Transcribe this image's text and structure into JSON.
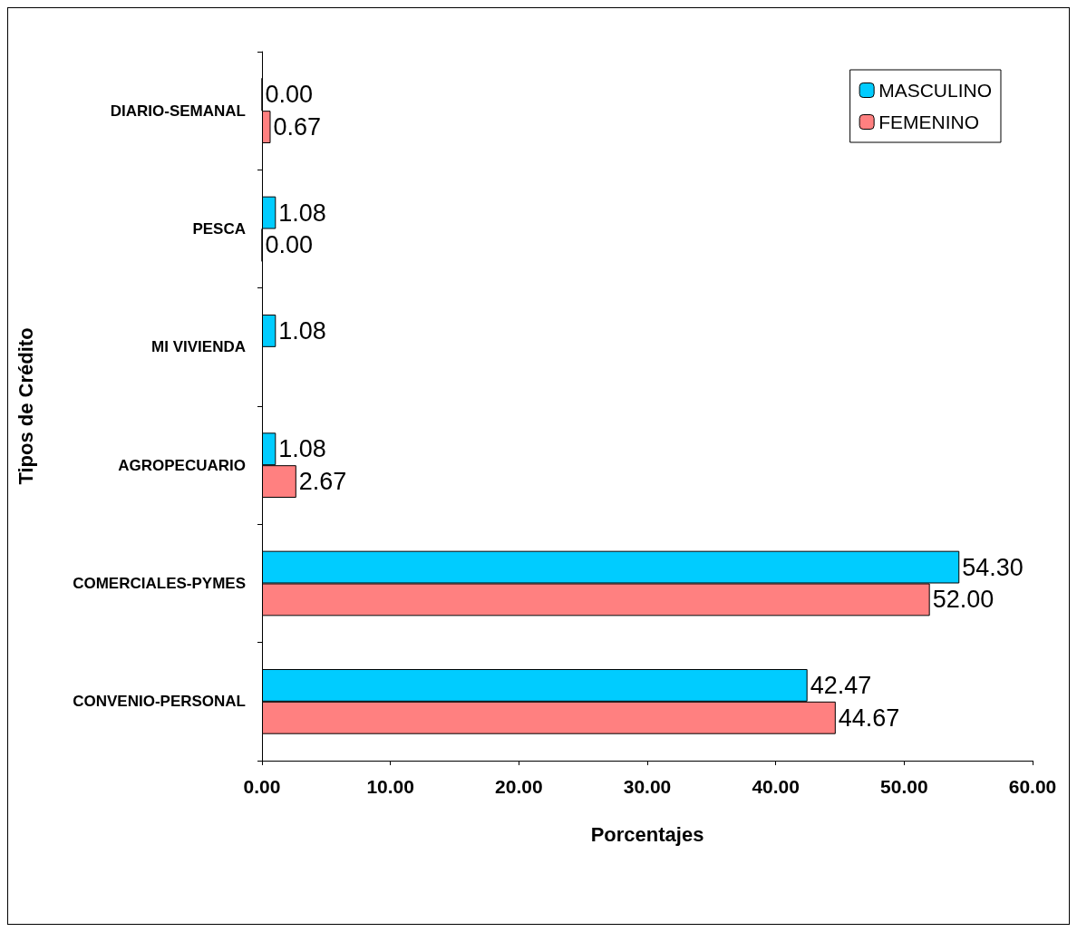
{
  "chart_data": {
    "type": "bar",
    "orientation": "horizontal",
    "xlabel": "Porcentajes",
    "ylabel": "Tipos de Crédito",
    "categories": [
      "DIARIO-SEMANAL",
      "PESCA",
      "MI VIVIENDA",
      "AGROPECUARIO",
      "COMERCIALES-PYMES",
      "CONVENIO-PERSONAL"
    ],
    "series": [
      {
        "name": "MASCULINO",
        "color": "#00ccff",
        "values": [
          0,
          1.08,
          1.08,
          1.08,
          54.3,
          42.47
        ],
        "value_labels": [
          "0.00",
          "1.08",
          "1.08",
          "1.08",
          "54.30",
          "42.47"
        ]
      },
      {
        "name": "FEMENINO",
        "color": "#ff8080",
        "values": [
          0.67,
          0,
          null,
          2.67,
          52,
          44.67
        ],
        "value_labels": [
          "0.67",
          "0.00",
          null,
          "2.67",
          "52.00",
          "44.67"
        ]
      }
    ],
    "xlim": [
      0,
      60
    ],
    "xticks": [
      {
        "value": 0,
        "label": "0.00"
      },
      {
        "value": 10,
        "label": "10.00"
      },
      {
        "value": 20,
        "label": "20.00"
      },
      {
        "value": 30,
        "label": "30.00"
      },
      {
        "value": 40,
        "label": "40.00"
      },
      {
        "value": 50,
        "label": "50.00"
      },
      {
        "value": 60,
        "label": "60.00"
      }
    ],
    "grid": false,
    "legend": "top right"
  }
}
